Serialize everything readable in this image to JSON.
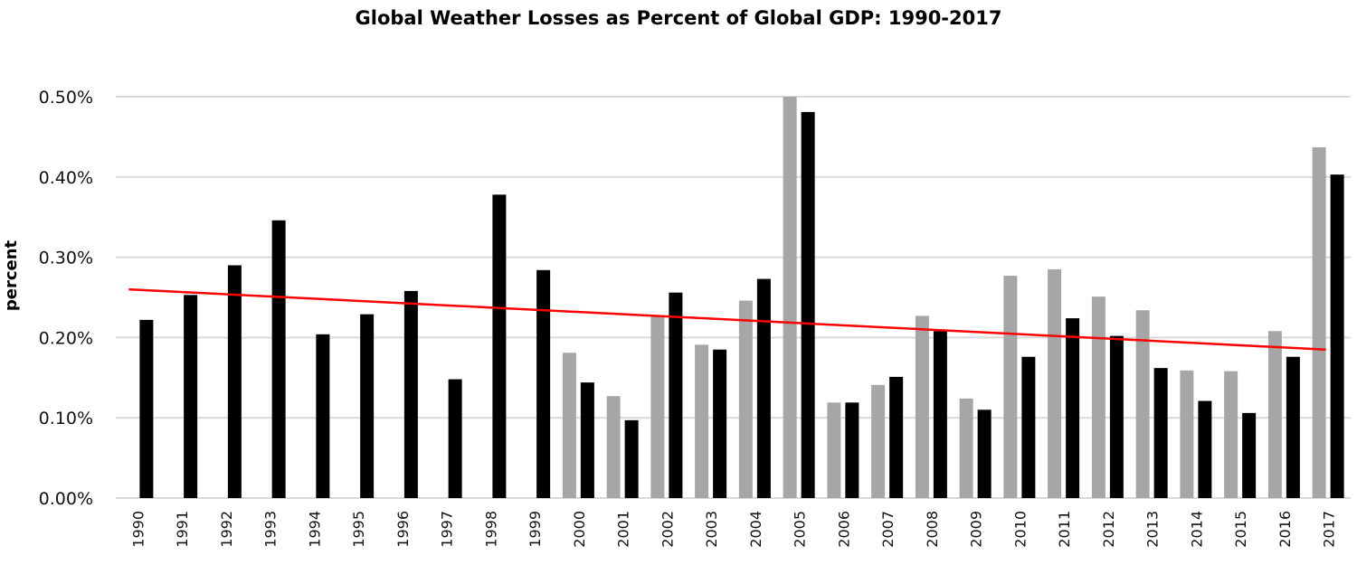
{
  "chart_data": {
    "type": "bar",
    "title": "Global Weather Losses as Percent of Global GDP: 1990-2017",
    "xlabel": "",
    "ylabel": "percent",
    "ylim": [
      0,
      0.5
    ],
    "y_unit": "%",
    "yticks": [
      0.0,
      0.1,
      0.2,
      0.3,
      0.4,
      0.5
    ],
    "ytick_labels": [
      "0.00%",
      "0.10%",
      "0.20%",
      "0.30%",
      "0.40%",
      "0.50%"
    ],
    "grid": true,
    "legend": "none",
    "categories": [
      "1990",
      "1991",
      "1992",
      "1993",
      "1994",
      "1995",
      "1996",
      "1997",
      "1998",
      "1999",
      "2000",
      "2001",
      "2002",
      "2003",
      "2004",
      "2005",
      "2006",
      "2007",
      "2008",
      "2009",
      "2010",
      "2011",
      "2012",
      "2013",
      "2014",
      "2015",
      "2016",
      "2017"
    ],
    "series": [
      {
        "name": "grey series",
        "color": "#a6a6a6",
        "values": [
          null,
          null,
          null,
          null,
          null,
          null,
          null,
          null,
          null,
          null,
          0.181,
          0.127,
          0.227,
          0.191,
          0.246,
          0.5,
          0.119,
          0.141,
          0.227,
          0.124,
          0.277,
          0.285,
          0.251,
          0.234,
          0.159,
          0.158,
          0.208,
          0.437
        ]
      },
      {
        "name": "black series",
        "color": "#000000",
        "values": [
          0.222,
          0.253,
          0.29,
          0.346,
          0.204,
          0.229,
          0.258,
          0.148,
          0.378,
          0.284,
          0.144,
          0.097,
          0.256,
          0.185,
          0.273,
          0.481,
          0.119,
          0.151,
          0.208,
          0.11,
          0.176,
          0.224,
          0.202,
          0.162,
          0.121,
          0.106,
          0.176,
          0.403
        ]
      }
    ],
    "trendline": {
      "color": "#ff0000",
      "start": {
        "x": "1990",
        "y": 0.26
      },
      "end": {
        "x": "2017",
        "y": 0.185
      }
    },
    "gridline_color": "#d9d9d9"
  }
}
